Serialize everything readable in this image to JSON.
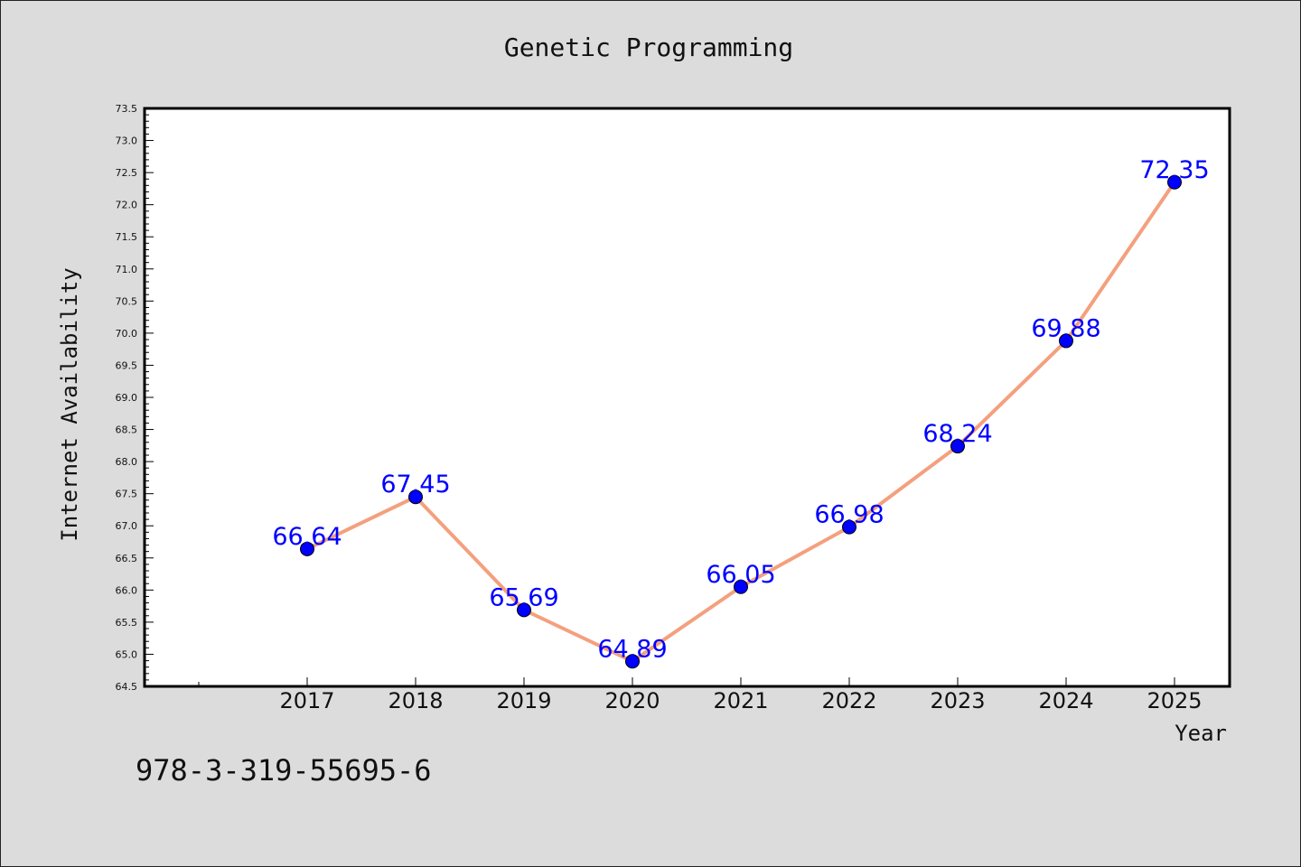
{
  "footer_text": "978-3-319-55695-6",
  "chart_data": {
    "type": "line",
    "title": "Genetic Programming",
    "xlabel": "Year",
    "ylabel": "Internet Availability",
    "categories": [
      "2017",
      "2018",
      "2019",
      "2020",
      "2021",
      "2022",
      "2023",
      "2024",
      "2025"
    ],
    "series": [
      {
        "values": [
          66.64,
          67.45,
          65.69,
          64.89,
          66.05,
          66.98,
          68.24,
          69.88,
          72.35
        ]
      }
    ],
    "data_labels": [
      "66.64",
      "67.45",
      "65.69",
      "64.89",
      "66.05",
      "66.98",
      "68.24",
      "69.88",
      "72.35"
    ],
    "ylim": [
      64.5,
      73.5
    ],
    "yticks": [
      "64.5",
      "65.0",
      "65.5",
      "66.0",
      "66.5",
      "67.0",
      "67.5",
      "68.0",
      "68.5",
      "69.0",
      "69.5",
      "70.0",
      "70.5",
      "71.0",
      "71.5",
      "72.0",
      "72.5",
      "73.0",
      "73.5"
    ],
    "grid": false,
    "line_color": "#f4a07e",
    "marker_color": "#0000ff",
    "label_color": "#0000ff"
  }
}
